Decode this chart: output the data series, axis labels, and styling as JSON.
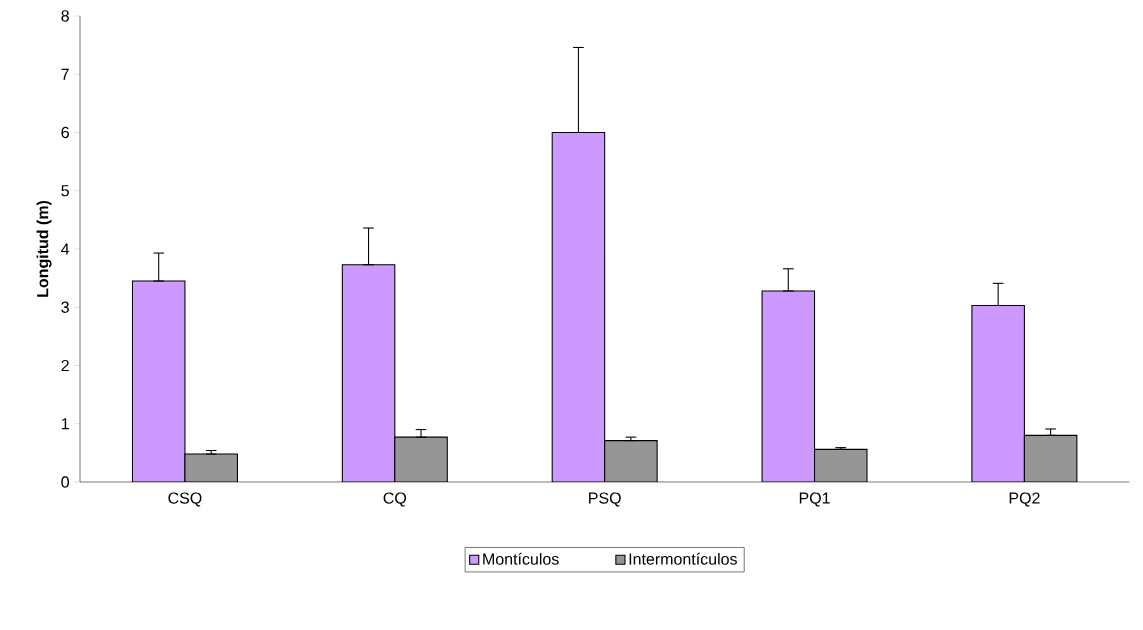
{
  "chart_data": {
    "type": "bar",
    "ylabel": "Longitud (m)",
    "categories": [
      "CSQ",
      "CQ",
      "PSQ",
      "PQ1",
      "PQ2"
    ],
    "series": [
      {
        "name": "Montículos",
        "color": "#cc99ff",
        "values": [
          3.45,
          3.73,
          6.0,
          3.28,
          3.03
        ],
        "errors": [
          [
            3.45,
            3.93
          ],
          [
            3.73,
            4.36
          ],
          [
            6.0,
            7.46
          ],
          [
            3.28,
            3.66
          ],
          [
            3.03,
            3.41
          ]
        ]
      },
      {
        "name": "Intermontículos",
        "color": "#969696",
        "values": [
          0.48,
          0.77,
          0.71,
          0.56,
          0.8
        ],
        "errors": [
          [
            0.48,
            0.54
          ],
          [
            0.77,
            0.9
          ],
          [
            0.71,
            0.77
          ],
          [
            0.56,
            0.59
          ],
          [
            0.8,
            0.91
          ]
        ]
      }
    ],
    "ylim": [
      0,
      8
    ],
    "yticks": [
      0,
      1,
      2,
      3,
      4,
      5,
      6,
      7,
      8
    ],
    "legend": "bottom",
    "grid": false
  }
}
